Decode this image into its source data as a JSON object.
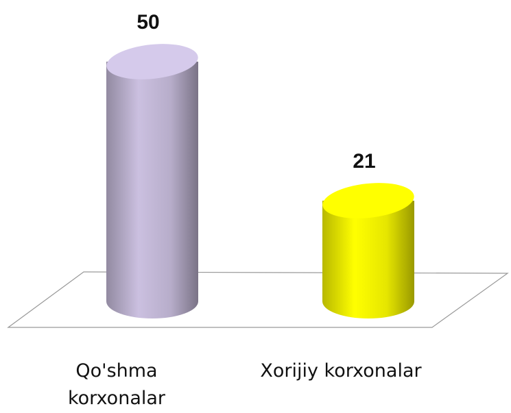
{
  "chart_data": {
    "type": "bar",
    "categories": [
      "Qo'shma korxonalar",
      "Xorijiy korxonalar"
    ],
    "values": [
      50,
      21
    ],
    "colors": [
      "#cbc0e0",
      "#ffff00"
    ]
  }
}
